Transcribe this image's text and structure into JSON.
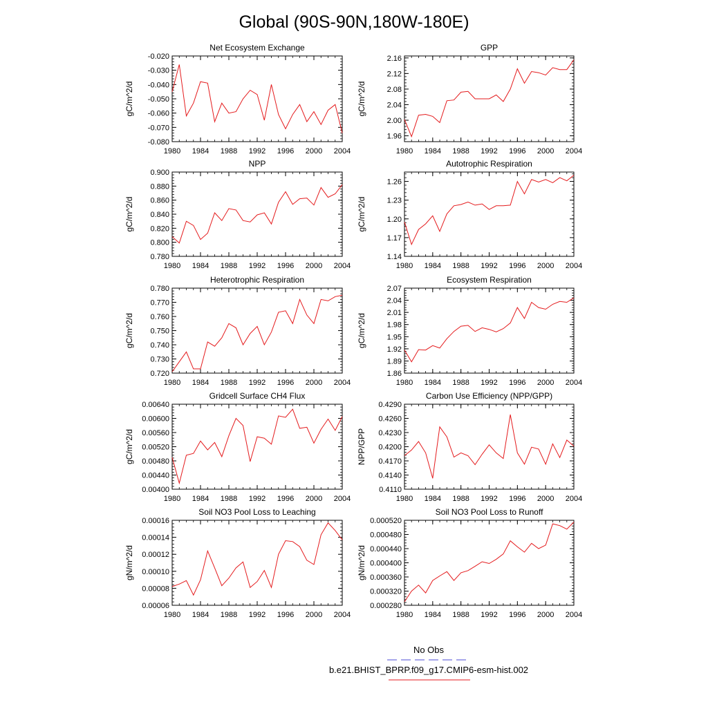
{
  "title": "Global (90S-90N,180W-180E)",
  "legend": {
    "entries": [
      {
        "label": "No Obs",
        "color": "#4b4bd6",
        "style": "dashed"
      },
      {
        "label": "b.e21.BHIST_BPRP.f09_g17.CMIP6-esm-hist.002",
        "color": "#e41a1c",
        "style": "solid"
      }
    ]
  },
  "series_color": "#e41a1c",
  "chart_data": [
    {
      "type": "line",
      "title": "Net Ecosystem Exchange",
      "ylabel": "gC/m^2/d",
      "xlim": [
        1980,
        2004
      ],
      "ylim": [
        -0.08,
        -0.02
      ],
      "yticks": [
        "-0.080",
        "-0.070",
        "-0.060",
        "-0.050",
        "-0.040",
        "-0.030",
        "-0.020"
      ],
      "xticks": [
        "1980",
        "1984",
        "1988",
        "1992",
        "1996",
        "2000",
        "2004"
      ],
      "x": [
        1980,
        1981,
        1982,
        1983,
        1984,
        1985,
        1986,
        1987,
        1988,
        1989,
        1990,
        1991,
        1992,
        1993,
        1994,
        1995,
        1996,
        1997,
        1998,
        1999,
        2000,
        2001,
        2002,
        2003,
        2004
      ],
      "values": [
        -0.045,
        -0.026,
        -0.062,
        -0.053,
        -0.038,
        -0.039,
        -0.066,
        -0.053,
        -0.06,
        -0.059,
        -0.05,
        -0.044,
        -0.047,
        -0.065,
        -0.04,
        -0.061,
        -0.071,
        -0.061,
        -0.054,
        -0.066,
        -0.059,
        -0.068,
        -0.058,
        -0.054,
        -0.074
      ]
    },
    {
      "type": "line",
      "title": "GPP",
      "ylabel": "gC/m^2/d",
      "xlim": [
        1980,
        2004
      ],
      "ylim": [
        1.945,
        2.165
      ],
      "yticks": [
        "1.96",
        "2.00",
        "2.04",
        "2.08",
        "2.12",
        "2.16"
      ],
      "xticks": [
        "1980",
        "1984",
        "1988",
        "1992",
        "1996",
        "2000",
        "2004"
      ],
      "x": [
        1980,
        1981,
        1982,
        1983,
        1984,
        1985,
        1986,
        1987,
        1988,
        1989,
        1990,
        1991,
        1992,
        1993,
        1994,
        1995,
        1996,
        1997,
        1998,
        1999,
        2000,
        2001,
        2002,
        2003,
        2004
      ],
      "values": [
        2.002,
        1.958,
        2.013,
        2.015,
        2.01,
        1.994,
        2.05,
        2.052,
        2.072,
        2.074,
        2.055,
        2.055,
        2.055,
        2.065,
        2.048,
        2.08,
        2.132,
        2.095,
        2.125,
        2.122,
        2.116,
        2.135,
        2.13,
        2.13,
        2.155
      ]
    },
    {
      "type": "line",
      "title": "NPP",
      "ylabel": "gC/m^2/d",
      "xlim": [
        1980,
        2004
      ],
      "ylim": [
        0.78,
        0.9
      ],
      "yticks": [
        "0.780",
        "0.800",
        "0.820",
        "0.840",
        "0.860",
        "0.880",
        "0.900"
      ],
      "xticks": [
        "1980",
        "1984",
        "1988",
        "1992",
        "1996",
        "2000",
        "2004"
      ],
      "x": [
        1980,
        1981,
        1982,
        1983,
        1984,
        1985,
        1986,
        1987,
        1988,
        1989,
        1990,
        1991,
        1992,
        1993,
        1994,
        1995,
        1996,
        1997,
        1998,
        1999,
        2000,
        2001,
        2002,
        2003,
        2004
      ],
      "values": [
        0.808,
        0.799,
        0.83,
        0.824,
        0.804,
        0.813,
        0.842,
        0.831,
        0.848,
        0.846,
        0.831,
        0.829,
        0.839,
        0.842,
        0.826,
        0.857,
        0.872,
        0.854,
        0.862,
        0.863,
        0.853,
        0.878,
        0.864,
        0.869,
        0.882
      ]
    },
    {
      "type": "line",
      "title": "Autotrophic Respiration",
      "ylabel": "gC/m^2/d",
      "xlim": [
        1980,
        2004
      ],
      "ylim": [
        1.14,
        1.275
      ],
      "yticks": [
        "1.14",
        "1.17",
        "1.20",
        "1.23",
        "1.26"
      ],
      "xticks": [
        "1980",
        "1984",
        "1988",
        "1992",
        "1996",
        "2000",
        "2004"
      ],
      "x": [
        1980,
        1981,
        1982,
        1983,
        1984,
        1985,
        1986,
        1987,
        1988,
        1989,
        1990,
        1991,
        1992,
        1993,
        1994,
        1995,
        1996,
        1997,
        1998,
        1999,
        2000,
        2001,
        2002,
        2003,
        2004
      ],
      "values": [
        1.195,
        1.159,
        1.183,
        1.192,
        1.205,
        1.18,
        1.208,
        1.221,
        1.223,
        1.227,
        1.222,
        1.224,
        1.215,
        1.221,
        1.221,
        1.222,
        1.26,
        1.24,
        1.263,
        1.259,
        1.263,
        1.258,
        1.266,
        1.261,
        1.27
      ]
    },
    {
      "type": "line",
      "title": "Heterotrophic Respiration",
      "ylabel": "gC/m^2/d",
      "xlim": [
        1980,
        2004
      ],
      "ylim": [
        0.72,
        0.78
      ],
      "yticks": [
        "0.720",
        "0.730",
        "0.740",
        "0.750",
        "0.760",
        "0.770",
        "0.780"
      ],
      "xticks": [
        "1980",
        "1984",
        "1988",
        "1992",
        "1996",
        "2000",
        "2004"
      ],
      "x": [
        1980,
        1981,
        1982,
        1983,
        1984,
        1985,
        1986,
        1987,
        1988,
        1989,
        1990,
        1991,
        1992,
        1993,
        1994,
        1995,
        1996,
        1997,
        1998,
        1999,
        2000,
        2001,
        2002,
        2003,
        2004
      ],
      "values": [
        0.721,
        0.728,
        0.735,
        0.723,
        0.723,
        0.742,
        0.739,
        0.745,
        0.755,
        0.752,
        0.74,
        0.748,
        0.753,
        0.74,
        0.749,
        0.763,
        0.764,
        0.755,
        0.772,
        0.761,
        0.755,
        0.772,
        0.771,
        0.774,
        0.775
      ]
    },
    {
      "type": "line",
      "title": "Ecosystem Respiration",
      "ylabel": "gC/m^2/d",
      "xlim": [
        1980,
        2004
      ],
      "ylim": [
        1.86,
        2.07
      ],
      "yticks": [
        "1.86",
        "1.89",
        "1.92",
        "1.95",
        "1.98",
        "2.01",
        "2.04",
        "2.07"
      ],
      "xticks": [
        "1980",
        "1984",
        "1988",
        "1992",
        "1996",
        "2000",
        "2004"
      ],
      "x": [
        1980,
        1981,
        1982,
        1983,
        1984,
        1985,
        1986,
        1987,
        1988,
        1989,
        1990,
        1991,
        1992,
        1993,
        1994,
        1995,
        1996,
        1997,
        1998,
        1999,
        2000,
        2001,
        2002,
        2003,
        2004
      ],
      "values": [
        1.917,
        1.888,
        1.918,
        1.917,
        1.928,
        1.922,
        1.945,
        1.963,
        1.976,
        1.978,
        1.963,
        1.972,
        1.968,
        1.962,
        1.97,
        1.984,
        2.022,
        1.995,
        2.035,
        2.022,
        2.018,
        2.03,
        2.037,
        2.035,
        2.046
      ]
    },
    {
      "type": "line",
      "title": "Gridcell Surface CH4 Flux",
      "ylabel": "gC/m^2/d",
      "xlim": [
        1980,
        2004
      ],
      "ylim": [
        0.004,
        0.0064
      ],
      "yticks": [
        "0.00400",
        "0.00440",
        "0.00480",
        "0.00520",
        "0.00560",
        "0.00600",
        "0.00640"
      ],
      "xticks": [
        "1980",
        "1984",
        "1988",
        "1992",
        "1996",
        "2000",
        "2004"
      ],
      "x": [
        1980,
        1981,
        1982,
        1983,
        1984,
        1985,
        1986,
        1987,
        1988,
        1989,
        1990,
        1991,
        1992,
        1993,
        1994,
        1995,
        1996,
        1997,
        1998,
        1999,
        2000,
        2001,
        2002,
        2003,
        2004
      ],
      "values": [
        0.0049,
        0.00417,
        0.00496,
        0.00501,
        0.00536,
        0.00511,
        0.00532,
        0.00492,
        0.00551,
        0.006,
        0.0058,
        0.00478,
        0.00548,
        0.00544,
        0.00527,
        0.00607,
        0.00603,
        0.00626,
        0.00572,
        0.00575,
        0.0053,
        0.00569,
        0.00598,
        0.00566,
        0.00605
      ]
    },
    {
      "type": "line",
      "title": "Carbon Use Efficiency (NPP/GPP)",
      "ylabel": "NPP/GPP",
      "xlim": [
        1980,
        2004
      ],
      "ylim": [
        0.411,
        0.429
      ],
      "yticks": [
        "0.4110",
        "0.4140",
        "0.4170",
        "0.4200",
        "0.4230",
        "0.4260",
        "0.4290"
      ],
      "xticks": [
        "1980",
        "1984",
        "1988",
        "1992",
        "1996",
        "2000",
        "2004"
      ],
      "x": [
        1980,
        1981,
        1982,
        1983,
        1984,
        1985,
        1986,
        1987,
        1988,
        1989,
        1990,
        1991,
        1992,
        1993,
        1994,
        1995,
        1996,
        1997,
        1998,
        1999,
        2000,
        2001,
        2002,
        2003,
        2004
      ],
      "values": [
        0.4181,
        0.4193,
        0.4211,
        0.4187,
        0.4133,
        0.4242,
        0.4221,
        0.4178,
        0.4187,
        0.4181,
        0.4162,
        0.4184,
        0.4204,
        0.4187,
        0.4175,
        0.4268,
        0.4187,
        0.4163,
        0.4199,
        0.4195,
        0.4163,
        0.4206,
        0.4177,
        0.4214,
        0.4201
      ]
    },
    {
      "type": "line",
      "title": "Soil NO3 Pool Loss to Leaching",
      "ylabel": "gN/m^2/d",
      "xlim": [
        1980,
        2004
      ],
      "ylim": [
        6e-05,
        0.00016
      ],
      "yticks": [
        "0.00006",
        "0.00008",
        "0.00010",
        "0.00012",
        "0.00014",
        "0.00016"
      ],
      "xticks": [
        "1980",
        "1984",
        "1988",
        "1992",
        "1996",
        "2000",
        "2004"
      ],
      "x": [
        1980,
        1981,
        1982,
        1983,
        1984,
        1985,
        1986,
        1987,
        1988,
        1989,
        1990,
        1991,
        1992,
        1993,
        1994,
        1995,
        1996,
        1997,
        1998,
        1999,
        2000,
        2001,
        2002,
        2003,
        2004
      ],
      "values": [
        8.2e-05,
        8.5e-05,
        8.9e-05,
        7.2e-05,
        9e-05,
        0.000124,
        0.000104,
        8.3e-05,
        9.2e-05,
        0.000104,
        0.000111,
        8.1e-05,
        8.8e-05,
        0.000101,
        8.1e-05,
        0.00012,
        0.000136,
        0.000135,
        0.000129,
        0.000113,
        0.000108,
        0.000143,
        0.000157,
        0.000148,
        0.000137
      ]
    },
    {
      "type": "line",
      "title": "Soil NO3 Pool Loss to Runoff",
      "ylabel": "gN/m^2/d",
      "xlim": [
        1980,
        2004
      ],
      "ylim": [
        0.00028,
        0.00052
      ],
      "yticks": [
        "0.000280",
        "0.000320",
        "0.000360",
        "0.000400",
        "0.000440",
        "0.000480",
        "0.000520"
      ],
      "xticks": [
        "1980",
        "1984",
        "1988",
        "1992",
        "1996",
        "2000",
        "2004"
      ],
      "x": [
        1980,
        1981,
        1982,
        1983,
        1984,
        1985,
        1986,
        1987,
        1988,
        1989,
        1990,
        1991,
        1992,
        1993,
        1994,
        1995,
        1996,
        1997,
        1998,
        1999,
        2000,
        2001,
        2002,
        2003,
        2004
      ],
      "values": [
        0.00029,
        0.00032,
        0.000337,
        0.000315,
        0.00035,
        0.000363,
        0.000375,
        0.00035,
        0.000372,
        0.000378,
        0.00039,
        0.000403,
        0.000398,
        0.00041,
        0.000425,
        0.000462,
        0.000445,
        0.00043,
        0.000455,
        0.00044,
        0.00045,
        0.00051,
        0.000505,
        0.000495,
        0.000515
      ]
    }
  ]
}
